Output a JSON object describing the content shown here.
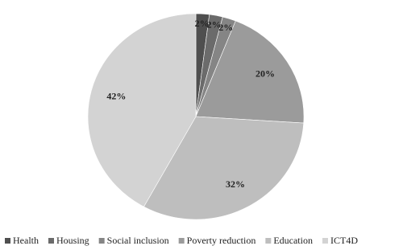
{
  "chart_data": {
    "type": "pie",
    "categories": [
      "Health",
      "Housing",
      "Social inclusion",
      "Poverty reduction",
      "Education",
      "ICT4D"
    ],
    "values": [
      2,
      2,
      2,
      20,
      32,
      42
    ],
    "value_labels": [
      "2%",
      "2%",
      "2%",
      "20%",
      "32%",
      "42%"
    ],
    "colors": [
      "#4f4f4f",
      "#6b6b6b",
      "#858585",
      "#9b9b9b",
      "#bebebe",
      "#d3d3d3"
    ],
    "legend": "bottom"
  }
}
